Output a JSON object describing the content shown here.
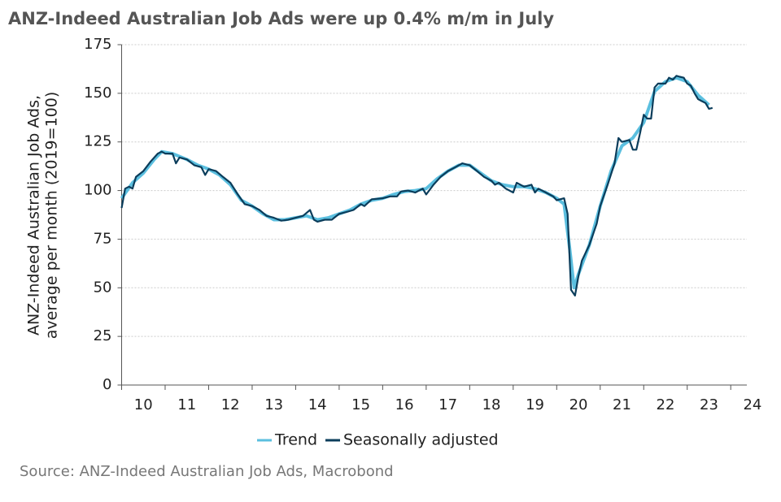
{
  "chart_data": {
    "type": "line",
    "title": "ANZ-Indeed Australian Job Ads were up 0.4% m/m in July",
    "y_label": [
      "ANZ-Indeed Australian Job Ads,",
      "average per month (2019=100)"
    ],
    "source": "Source: ANZ-Indeed Australian Job Ads, Macrobond",
    "xlim": [
      2010,
      2024.37
    ],
    "xticks": [
      {
        "value": 2010,
        "label": "10"
      },
      {
        "value": 2011,
        "label": "11"
      },
      {
        "value": 2012,
        "label": "12"
      },
      {
        "value": 2013,
        "label": "13"
      },
      {
        "value": 2014,
        "label": "14"
      },
      {
        "value": 2015,
        "label": "15"
      },
      {
        "value": 2016,
        "label": "16"
      },
      {
        "value": 2017,
        "label": "17"
      },
      {
        "value": 2018,
        "label": "18"
      },
      {
        "value": 2019,
        "label": "19"
      },
      {
        "value": 2020,
        "label": "20"
      },
      {
        "value": 2021,
        "label": "21"
      },
      {
        "value": 2022,
        "label": "22"
      },
      {
        "value": 2023,
        "label": "23"
      },
      {
        "value": 2024,
        "label": "24"
      }
    ],
    "ylim": [
      0,
      175
    ],
    "yticks": [
      0,
      25,
      50,
      75,
      100,
      125,
      150,
      175
    ],
    "grid": true,
    "legend": "bottom",
    "series": [
      {
        "name": "Trend",
        "color": "#5bbfdf",
        "x": [
          2010.0,
          2010.25,
          2010.5,
          2010.75,
          2010.92,
          2011.17,
          2011.5,
          2011.75,
          2012.0,
          2012.25,
          2012.5,
          2012.75,
          2013.0,
          2013.25,
          2013.5,
          2013.75,
          2014.0,
          2014.25,
          2014.5,
          2014.75,
          2015.0,
          2015.25,
          2015.5,
          2015.75,
          2016.0,
          2016.25,
          2016.5,
          2016.75,
          2017.0,
          2017.25,
          2017.5,
          2017.75,
          2018.0,
          2018.25,
          2018.5,
          2018.75,
          2019.0,
          2019.25,
          2019.5,
          2019.75,
          2020.0,
          2020.17,
          2020.3,
          2020.4,
          2020.5,
          2020.75,
          2021.0,
          2021.25,
          2021.5,
          2021.75,
          2022.0,
          2022.25,
          2022.5,
          2022.75,
          2023.0,
          2023.25,
          2023.5
        ],
        "values": [
          96,
          104,
          109,
          116,
          120,
          119,
          116,
          113,
          111,
          108,
          103,
          95,
          92,
          88,
          85,
          85,
          86,
          87,
          85,
          86,
          88,
          90,
          93,
          95,
          96,
          98,
          99.5,
          100,
          101,
          106,
          110,
          113,
          113,
          109,
          105,
          103,
          102,
          102,
          101,
          99,
          96,
          93,
          70,
          50,
          57,
          72,
          92,
          110,
          123,
          127,
          135,
          151,
          156,
          158,
          156,
          149,
          144
        ]
      },
      {
        "name": "Seasonally adjusted",
        "color": "#0b3d5b",
        "x": [
          2010.0,
          2010.08,
          2010.17,
          2010.25,
          2010.33,
          2010.5,
          2010.67,
          2010.83,
          2010.92,
          2011.0,
          2011.17,
          2011.25,
          2011.33,
          2011.5,
          2011.67,
          2011.83,
          2011.92,
          2012.0,
          2012.17,
          2012.33,
          2012.5,
          2012.67,
          2012.83,
          2013.0,
          2013.17,
          2013.33,
          2013.5,
          2013.67,
          2013.83,
          2014.0,
          2014.17,
          2014.33,
          2014.42,
          2014.5,
          2014.67,
          2014.83,
          2015.0,
          2015.17,
          2015.33,
          2015.5,
          2015.58,
          2015.75,
          2016.0,
          2016.17,
          2016.33,
          2016.42,
          2016.58,
          2016.75,
          2016.92,
          2017.0,
          2017.17,
          2017.33,
          2017.5,
          2017.67,
          2017.83,
          2018.0,
          2018.17,
          2018.33,
          2018.5,
          2018.58,
          2018.67,
          2018.83,
          2019.0,
          2019.08,
          2019.25,
          2019.42,
          2019.5,
          2019.58,
          2019.75,
          2019.92,
          2020.0,
          2020.17,
          2020.25,
          2020.33,
          2020.42,
          2020.5,
          2020.58,
          2020.75,
          2020.92,
          2021.0,
          2021.17,
          2021.33,
          2021.42,
          2021.5,
          2021.67,
          2021.75,
          2021.83,
          2021.92,
          2022.0,
          2022.08,
          2022.17,
          2022.25,
          2022.33,
          2022.5,
          2022.58,
          2022.67,
          2022.75,
          2022.83,
          2022.92,
          2023.0,
          2023.08,
          2023.17,
          2023.25,
          2023.33,
          2023.42,
          2023.5,
          2023.58
        ],
        "values": [
          91,
          101,
          102,
          101,
          107,
          110,
          115,
          119,
          120,
          119,
          119,
          114,
          117,
          116,
          113,
          112,
          108,
          111,
          110,
          107,
          104,
          98,
          93,
          92,
          90,
          87,
          86,
          84.5,
          85,
          86,
          87,
          90,
          85,
          84,
          85,
          85,
          88,
          89,
          90,
          93,
          92,
          95.5,
          96,
          97,
          97,
          99.5,
          100,
          99,
          101,
          98,
          103,
          107,
          110,
          112,
          114,
          113,
          110,
          107,
          105,
          103,
          104,
          101,
          99,
          104,
          102,
          103,
          99,
          101,
          99,
          97,
          95,
          96,
          88,
          49,
          46,
          56,
          64,
          72,
          83,
          92,
          103,
          114,
          127,
          125,
          126,
          121,
          121,
          130,
          139,
          137,
          137,
          153,
          155,
          155,
          158,
          157,
          159,
          158.5,
          158,
          155,
          154,
          150,
          147,
          146,
          145,
          142,
          142.5
        ]
      }
    ]
  }
}
